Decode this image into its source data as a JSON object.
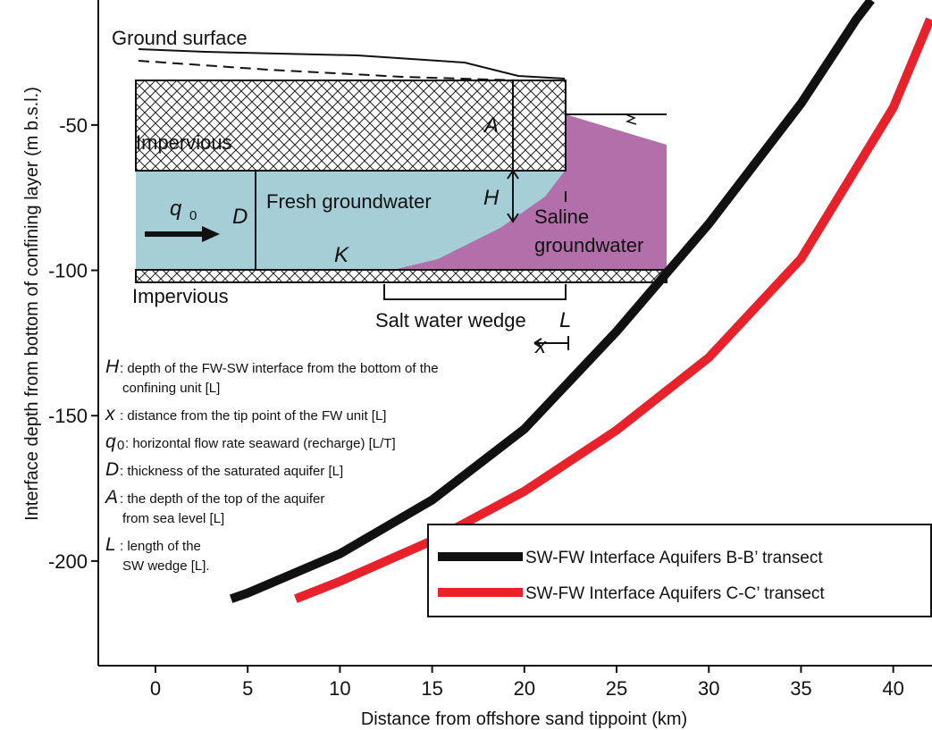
{
  "chart_data": {
    "type": "line",
    "xlabel": "Distance from offshore sand tippoint (km)",
    "ylabel": "Interface depth from bottom of confining layer (m b.s.l.)",
    "xlim": [
      -3.1,
      42.1
    ],
    "ylim": [
      -236,
      -7
    ],
    "xticks": [
      0,
      5,
      10,
      15,
      20,
      25,
      30,
      35,
      40
    ],
    "yticks": [
      -50,
      -100,
      -150,
      -200
    ],
    "legend": "lower right",
    "series": [
      {
        "name": "SW-FW Interface Aquifers B-B’ transect",
        "color": "#111111",
        "x": [
          4.1,
          5,
          10,
          15,
          20,
          25,
          30,
          35,
          38,
          38.8
        ],
        "values": [
          -213,
          -211,
          -197.5,
          -179,
          -154.6,
          -121,
          -84,
          -42.6,
          -13.6,
          -7
        ]
      },
      {
        "name": "SW-FW Interface Aquifers C-C’ transect",
        "color": "#e8212a",
        "x": [
          7.6,
          10,
          15,
          20,
          25,
          30,
          35,
          40,
          42
        ],
        "values": [
          -213,
          -207,
          -193,
          -176,
          -155,
          -130,
          -96,
          -44,
          -13.6
        ]
      }
    ],
    "inset": {
      "labels": [
        "Ground surface",
        "Impervious",
        "Fresh groundwater",
        "Saline",
        "groundwater",
        "Impervious",
        "Salt water wedge"
      ],
      "symbols": [
        "A",
        "H",
        "D",
        "K",
        "L",
        "x",
        "q",
        "0"
      ],
      "definitions": [
        {
          "symbol": "H",
          "lines": [
            ": depth of the FW-SW interface from the bottom of the",
            "confining unit [L]"
          ]
        },
        {
          "symbol": "x",
          "lines": [
            ": distance from the tip point of the FW unit [L]"
          ]
        },
        {
          "symbol": "q",
          "sub": "0",
          "lines": [
            ": horizontal flow rate seaward (recharge) [L/T]"
          ]
        },
        {
          "symbol": "D",
          "lines": [
            ": thickness of the saturated aquifer [L]"
          ]
        },
        {
          "symbol": "A",
          "lines": [
            ": the depth of the top of the aquifer",
            "from sea level [L]"
          ]
        },
        {
          "symbol": "L",
          "lines": [
            ": length of the",
            "SW wedge [L]."
          ]
        }
      ]
    }
  }
}
